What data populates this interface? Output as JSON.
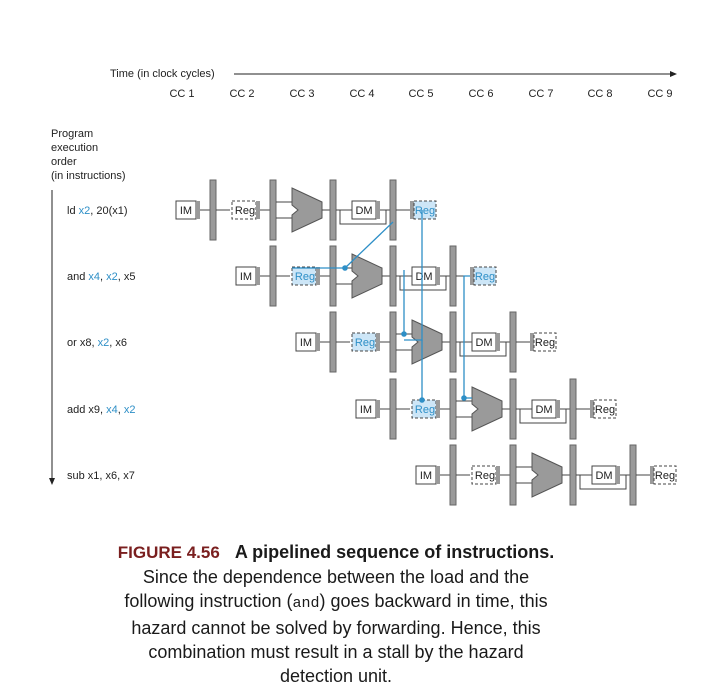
{
  "time_axis_label": "Time (in clock cycles)",
  "clock_cycles": [
    "CC 1",
    "CC 2",
    "CC 3",
    "CC 4",
    "CC 5",
    "CC 6",
    "CC 7",
    "CC 8",
    "CC 9"
  ],
  "order_label": [
    "Program",
    "execution",
    "order",
    "(in instructions)"
  ],
  "instructions": [
    {
      "op": "ld",
      "parts": [
        {
          "t": "ld ",
          "h": false
        },
        {
          "t": "x2",
          "h": true
        },
        {
          "t": ", 20(x1)",
          "h": false
        }
      ]
    },
    {
      "op": "and",
      "parts": [
        {
          "t": "and ",
          "h": false
        },
        {
          "t": "x4",
          "h": true
        },
        {
          "t": ", ",
          "h": false
        },
        {
          "t": "x2",
          "h": true
        },
        {
          "t": ", x5",
          "h": false
        }
      ]
    },
    {
      "op": "or",
      "parts": [
        {
          "t": "or x8, ",
          "h": false
        },
        {
          "t": "x2",
          "h": true
        },
        {
          "t": ", x6",
          "h": false
        }
      ]
    },
    {
      "op": "add",
      "parts": [
        {
          "t": "add x9, ",
          "h": false
        },
        {
          "t": "x4",
          "h": true
        },
        {
          "t": ", ",
          "h": false
        },
        {
          "t": "x2",
          "h": true
        }
      ]
    },
    {
      "op": "sub",
      "parts": [
        {
          "t": "sub x1, x6, x7",
          "h": false
        }
      ]
    }
  ],
  "stage_labels": {
    "im": "IM",
    "reg": "Reg",
    "dm": "DM"
  },
  "colors": {
    "highlight": "#2e8fc7",
    "reg_fill": "#cde6f7",
    "unit_gray": "#9a9a9a",
    "caption_red": "#7a1f1f"
  },
  "caption": {
    "figure_number": "FIGURE 4.56",
    "title": "A pipelined sequence of instructions.",
    "line1": "Since the dependence between the load and the",
    "line2_pre": "following instruction (",
    "line2_code": "and",
    "line2_post": ") goes backward in time, this",
    "line3": "hazard cannot be solved by forwarding. Hence, this",
    "line4": "combination must result in a stall by the hazard",
    "line5": "detection unit."
  }
}
